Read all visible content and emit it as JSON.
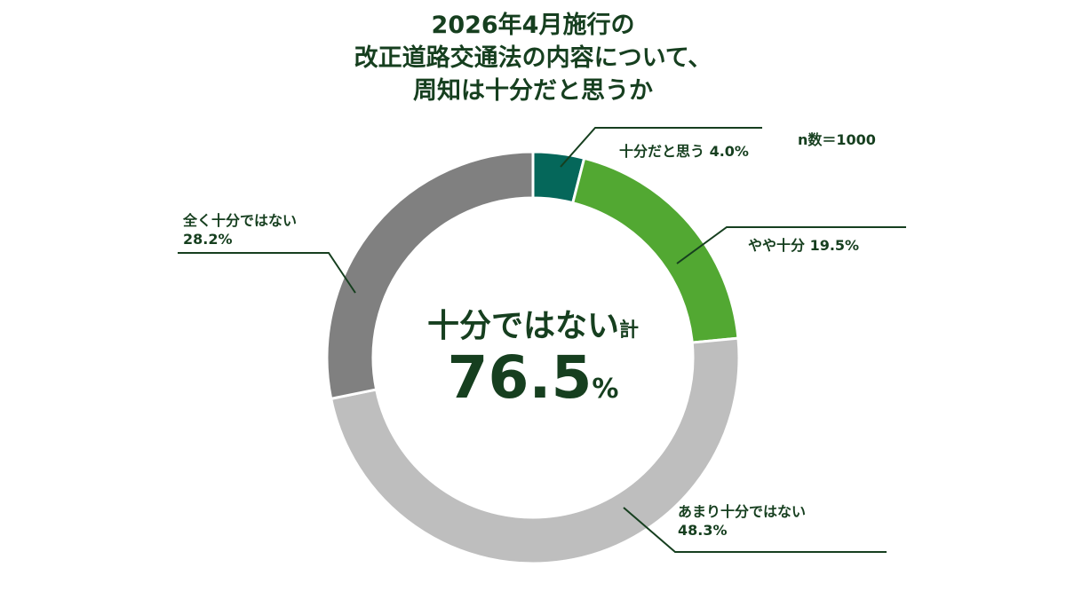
{
  "title": {
    "line1": "2026年4月施行の",
    "line2": "改正道路交通法の内容について、",
    "line3": "周知は十分だと思うか"
  },
  "sample_size": "n数＝1000",
  "center": {
    "label": "十分ではない",
    "label_suffix": "計",
    "value": "76.5",
    "unit": "%"
  },
  "chart_data": {
    "type": "pie",
    "donut": true,
    "title": "2026年4月施行の改正道路交通法の内容について、周知は十分だと思うか",
    "series": [
      {
        "name": "十分だと思う",
        "value": 4.0,
        "label": "十分だと思う 4.0%",
        "color": "#05675a"
      },
      {
        "name": "やや十分",
        "value": 19.5,
        "label": "やや十分 19.5%",
        "color": "#52a832"
      },
      {
        "name": "あまり十分ではない",
        "value": 48.3,
        "label_line1": "あまり十分ではない",
        "label_line2": "48.3%",
        "color": "#bebebe"
      },
      {
        "name": "全く十分ではない",
        "value": 28.2,
        "label_line1": "全く十分ではない",
        "label_line2": "28.2%",
        "color": "#808080"
      }
    ]
  },
  "colors": {
    "title": "#163f1f",
    "leader": "#163f1f"
  }
}
